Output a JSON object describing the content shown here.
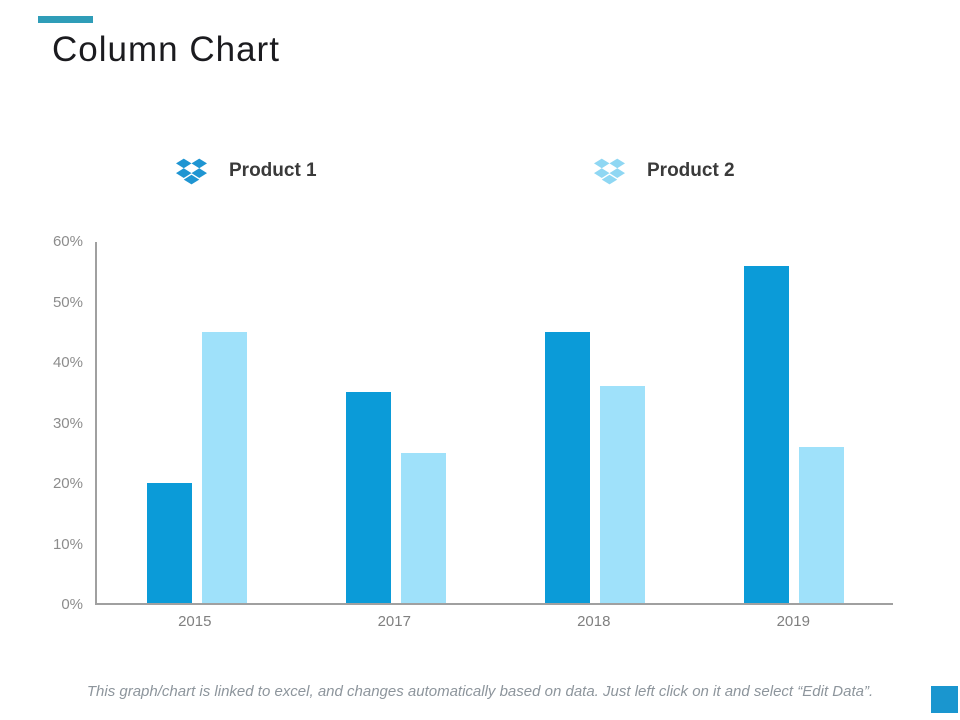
{
  "slide": {
    "title": "Column Chart",
    "accent_color": "#2f9db8",
    "corner_square_color": "#1a96cf",
    "footer_note": "This graph/chart is linked to excel, and changes automatically based on data. Just left click on it and select “Edit Data”."
  },
  "legend": {
    "items": [
      {
        "label": "Product 1",
        "icon": "dropbox-icon",
        "color": "#1f95d2"
      },
      {
        "label": "Product 2",
        "icon": "dropbox-icon",
        "color": "#8fd7f3"
      }
    ]
  },
  "chart_data": {
    "type": "bar",
    "title": "",
    "xlabel": "",
    "ylabel": "",
    "categories": [
      "2015",
      "2017",
      "2018",
      "2019"
    ],
    "series": [
      {
        "name": "Product 1",
        "color": "#0b9bd8",
        "values": [
          20,
          35,
          45,
          56
        ]
      },
      {
        "name": "Product 2",
        "color": "#9fe1fa",
        "values": [
          45,
          25,
          36,
          26
        ]
      }
    ],
    "ylim": [
      0,
      60
    ],
    "y_ticks": [
      "60%",
      "50%",
      "40%",
      "30%",
      "20%",
      "10%",
      "0%"
    ],
    "grid": false,
    "legend_position": "top",
    "axis_color": "#a0a0a0"
  }
}
